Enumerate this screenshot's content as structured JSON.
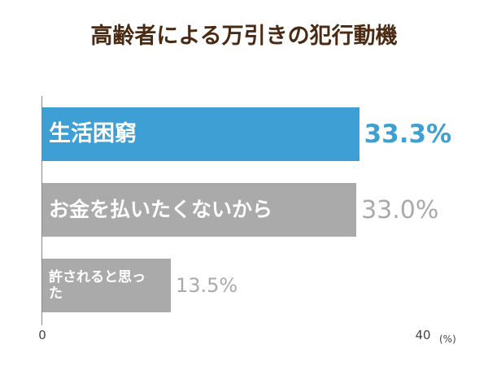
{
  "chart_data": {
    "type": "hbar",
    "title": "高齢者による万引きの犯行動機",
    "categories": [
      "生活困窮",
      "お金を払いたくないから",
      "許されると思った"
    ],
    "values": [
      33.3,
      33.0,
      13.5
    ],
    "value_labels": [
      "33.3%",
      "33.0%",
      "13.5%"
    ],
    "colors": [
      "#3d9fd3",
      "#aaaaaa",
      "#aaaaaa"
    ],
    "label_colors": [
      "#3d9fd3",
      "#aaaaaa",
      "#aaaaaa"
    ],
    "xlim": [
      0,
      40
    ],
    "xticks": [
      0,
      40
    ],
    "x_unit": "(%)"
  }
}
